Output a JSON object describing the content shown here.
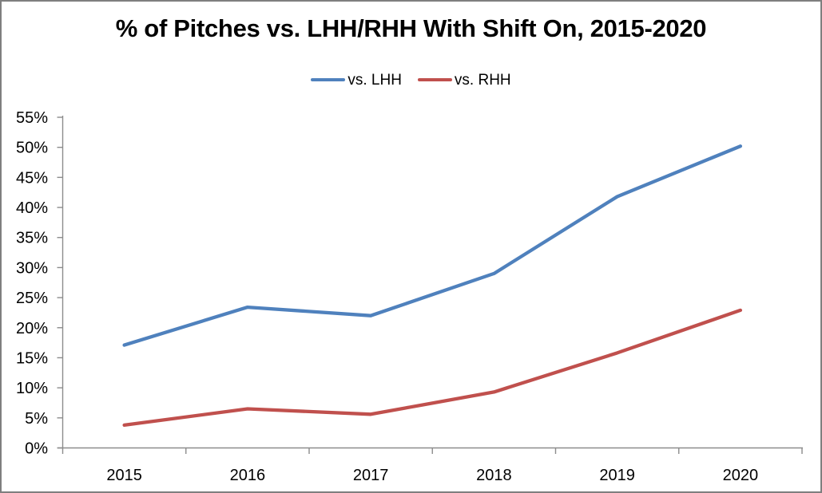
{
  "window": {
    "background": "#FFFFFF",
    "border_color": "#7F7F7F"
  },
  "title": "% of Pitches vs. LHH/RHH With Shift On, 2015-2020",
  "legend": {
    "items": [
      {
        "label": "vs. LHH",
        "color": "#4F81BD"
      },
      {
        "label": "vs. RHH",
        "color": "#C0504D"
      }
    ]
  },
  "chart_data": {
    "type": "line",
    "title": "% of Pitches vs. LHH/RHH With Shift On, 2015-2020",
    "categories": [
      "2015",
      "2016",
      "2017",
      "2018",
      "2019",
      "2020"
    ],
    "series": [
      {
        "name": "vs. LHH",
        "color": "#4F81BD",
        "values": [
          17.1,
          23.4,
          22.0,
          29.0,
          41.8,
          50.2
        ]
      },
      {
        "name": "vs. RHH",
        "color": "#C0504D",
        "values": [
          3.8,
          6.5,
          5.6,
          9.3,
          15.8,
          22.9
        ]
      }
    ],
    "xlabel": "",
    "ylabel": "",
    "ylim": [
      0,
      55
    ],
    "ytick_step": 5,
    "ytick_labels": [
      "0%",
      "5%",
      "10%",
      "15%",
      "20%",
      "25%",
      "30%",
      "35%",
      "40%",
      "45%",
      "50%",
      "55%"
    ],
    "grid": false,
    "legend_position": "top",
    "axis_color": "#8C8C8C",
    "label_color": "#000000"
  }
}
